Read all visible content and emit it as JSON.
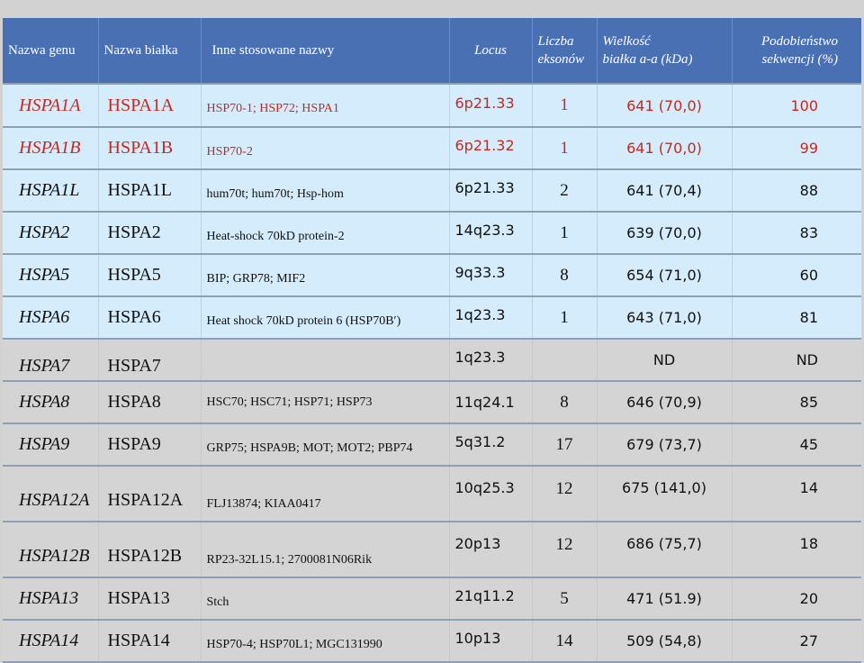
{
  "headers": {
    "gene": "Nazwa genu",
    "protein": "Nazwa białka",
    "other_names": "Inne stosowane nazwy",
    "locus": "Locus",
    "exons_line1": "Liczba",
    "exons_line2": "eksonów",
    "size_line1": "Wielkość",
    "size_line2": "białka a-a (kDa)",
    "similarity_line1": "Podobieństwo",
    "similarity_line2": "sekwencji (%)"
  },
  "rows": [
    {
      "gene": "HSPA1A",
      "protein": "HSPA1A",
      "other": "HSP70-1; HSP72; HSPA1",
      "locus": "6p21.33",
      "exons": "1",
      "size": "641 (70,0)",
      "similarity": "100"
    },
    {
      "gene": "HSPA1B",
      "protein": "HSPA1B",
      "other": "HSP70-2",
      "locus": "6p21.32",
      "exons": "1",
      "size": "641 (70,0)",
      "similarity": "99"
    },
    {
      "gene": "HSPA1L",
      "protein": "HSPA1L",
      "other": "hum70t; hum70t; Hsp-hom",
      "locus": "6p21.33",
      "exons": "2",
      "size": "641 (70,4)",
      "similarity": "88"
    },
    {
      "gene": "HSPA2",
      "protein": "HSPA2",
      "other": "Heat-shock 70kD protein-2",
      "locus": "14q23.3",
      "exons": "1",
      "size": "639 (70,0)",
      "similarity": "83"
    },
    {
      "gene": "HSPA5",
      "protein": "HSPA5",
      "other": "BIP; GRP78; MIF2",
      "locus": "9q33.3",
      "exons": "8",
      "size": "654 (71,0)",
      "similarity": "60"
    },
    {
      "gene": "HSPA6",
      "protein": "HSPA6",
      "other": "Heat shock 70kD protein 6 (HSP70B′)",
      "locus": "1q23.3",
      "exons": "1",
      "size": "643 (71,0)",
      "similarity": "81"
    },
    {
      "gene": "HSPA7",
      "protein": "HSPA7",
      "other": "",
      "locus": "1q23.3",
      "exons": "",
      "size": "ND",
      "similarity": "ND"
    },
    {
      "gene": "HSPA8",
      "protein": "HSPA8",
      "other": "HSC70; HSC71; HSP71; HSP73",
      "locus": "11q24.1",
      "exons": "8",
      "size": "646 (70,9)",
      "similarity": "85"
    },
    {
      "gene": "HSPA9",
      "protein": "HSPA9",
      "other": "GRP75; HSPA9B; MOT; MOT2; PBP74",
      "locus": "5q31.2",
      "exons": "17",
      "size": "679 (73,7)",
      "similarity": "45"
    },
    {
      "gene": "HSPA12A",
      "protein": "HSPA12A",
      "other": "FLJ13874; KIAA0417",
      "locus": "10q25.3",
      "exons": "12",
      "size": "675 (141,0)",
      "similarity": "14"
    },
    {
      "gene": "HSPA12B",
      "protein": "HSPA12B",
      "other": "RP23-32L15.1; 2700081N06Rik",
      "locus": "20p13",
      "exons": "12",
      "size": "686 (75,7)",
      "similarity": "18"
    },
    {
      "gene": "HSPA13",
      "protein": "HSPA13",
      "other": "Stch",
      "locus": "21q11.2",
      "exons": "5",
      "size": "471 (51.9)",
      "similarity": "20"
    },
    {
      "gene": "HSPA14",
      "protein": "HSPA14",
      "other": "HSP70-4; HSP70L1; MGC131990",
      "locus": "10p13",
      "exons": "14",
      "size": "509 (54,8)",
      "similarity": "27"
    }
  ],
  "colors": {
    "header_bg": "#4a70b4",
    "highlight_text": "#c8281e",
    "blue_row": "#d4ecfb",
    "gray_row": "#d4d4d4"
  }
}
